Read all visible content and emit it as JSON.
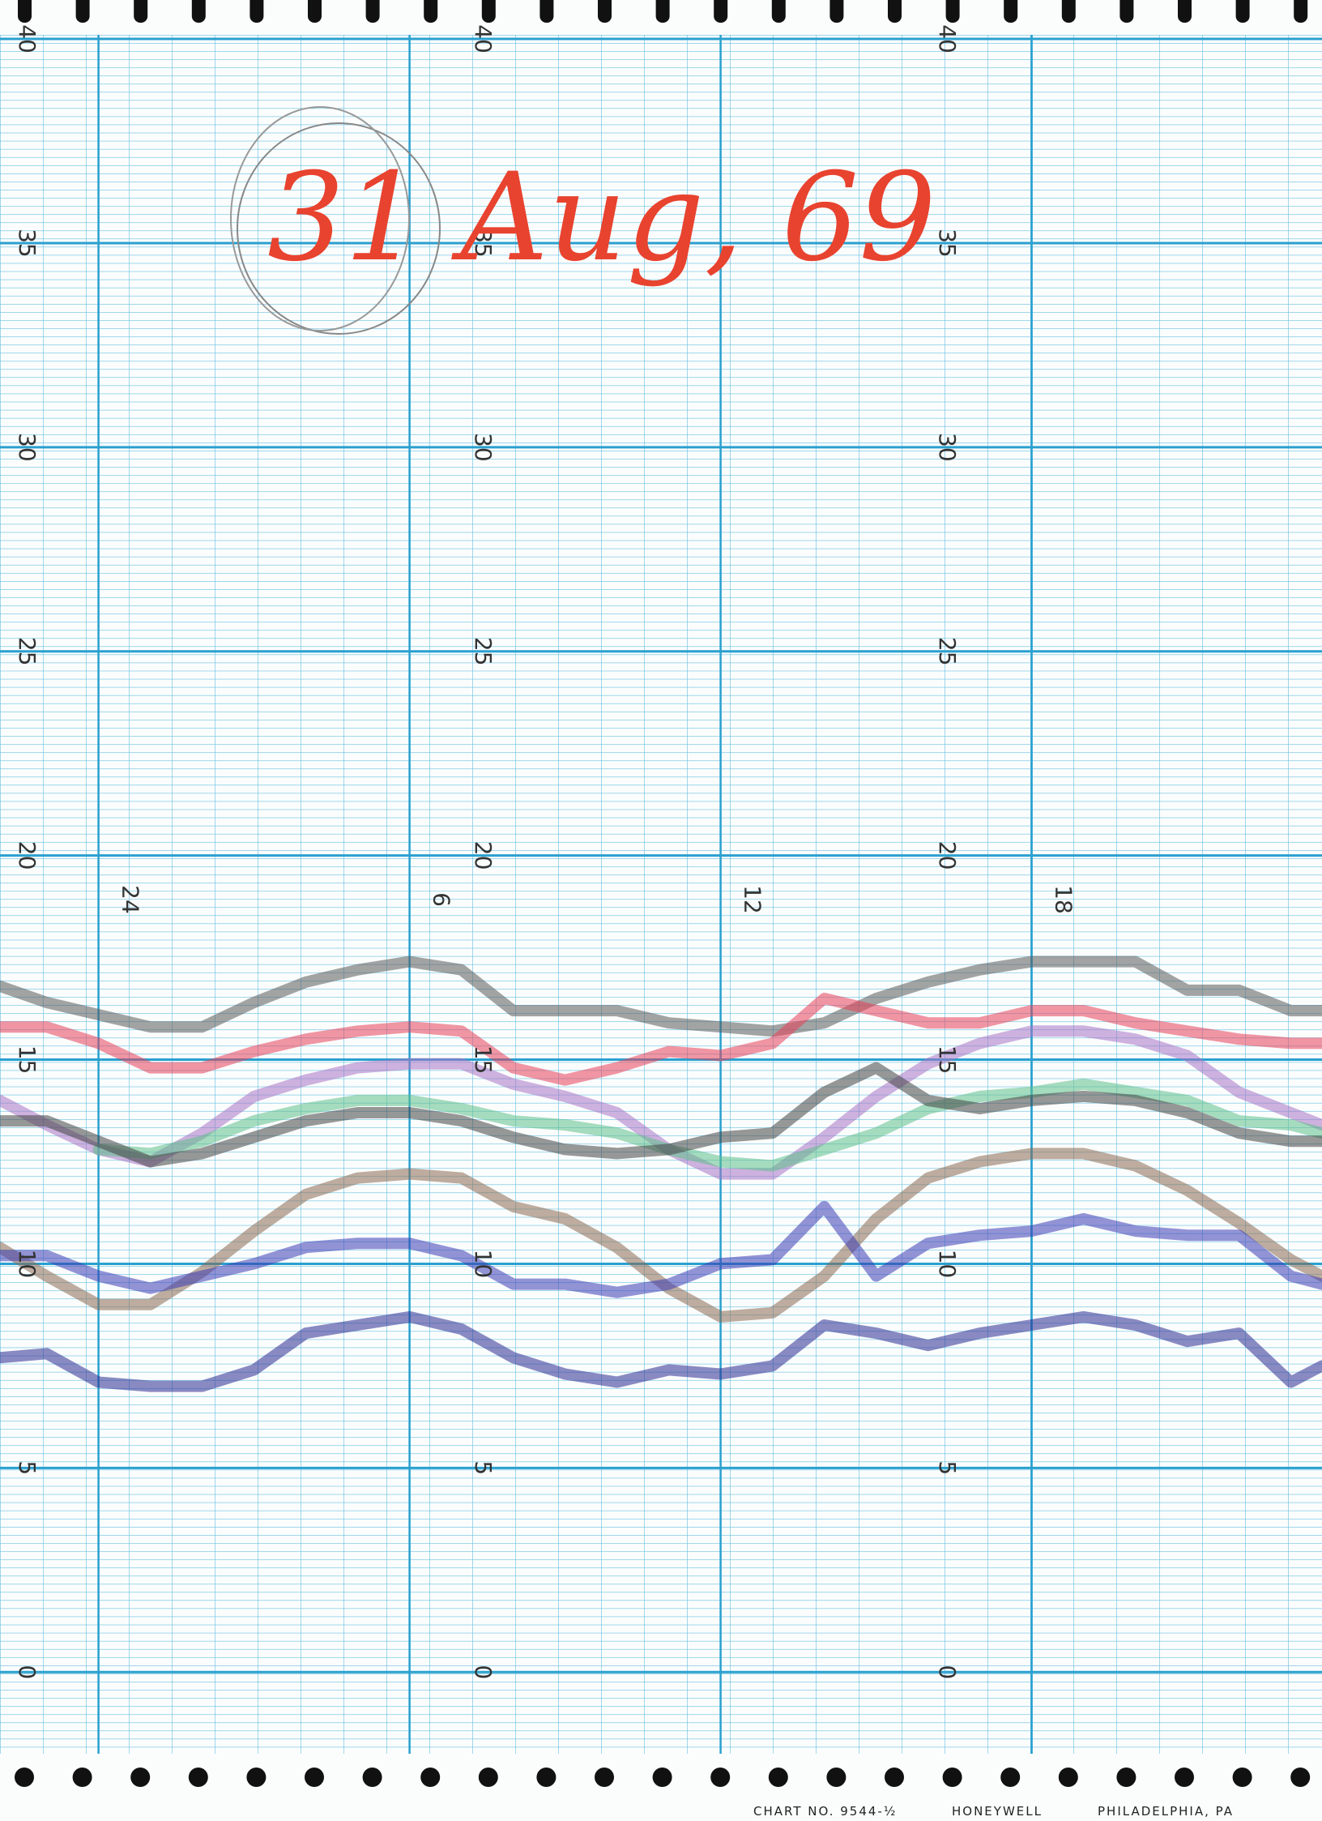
{
  "chart_data": {
    "type": "line",
    "title": "31 Aug, 69",
    "x": [
      -1.9,
      -1,
      0,
      1,
      2,
      3,
      4,
      5,
      6,
      7,
      8,
      9,
      10,
      11,
      12,
      13,
      14,
      15,
      16,
      17,
      18,
      19,
      20,
      21,
      22,
      23,
      23.6
    ],
    "xlim": [
      -1.9,
      23.6
    ],
    "xticks": [
      {
        "value": 0,
        "label": "24"
      },
      6,
      12,
      18
    ],
    "ylim": [
      -2,
      40.1
    ],
    "yticks": [
      0,
      5,
      10,
      15,
      20,
      25,
      30,
      35,
      40
    ],
    "grid": true,
    "series": [
      {
        "color": "#5a5a5a",
        "values": [
          16.8,
          16.4,
          16.1,
          15.8,
          15.8,
          16.4,
          16.9,
          17.2,
          17.4,
          17.2,
          16.2,
          16.2,
          16.2,
          15.9,
          15.8,
          15.7,
          15.9,
          16.5,
          16.9,
          17.2,
          17.4,
          17.4,
          17.4,
          16.7,
          16.7,
          16.2,
          16.2
        ]
      },
      {
        "color": "#e8405a",
        "values": [
          15.8,
          15.8,
          15.4,
          14.8,
          14.8,
          15.2,
          15.5,
          15.7,
          15.8,
          15.7,
          14.8,
          14.5,
          14.8,
          15.2,
          15.1,
          15.4,
          16.5,
          16.2,
          15.9,
          15.9,
          16.2,
          16.2,
          15.9,
          15.7,
          15.5,
          15.4,
          15.4
        ]
      },
      {
        "color": "#a873c4",
        "values": [
          14.0,
          13.4,
          12.8,
          12.5,
          13.2,
          14.1,
          14.5,
          14.8,
          14.9,
          14.9,
          14.4,
          14.1,
          13.7,
          12.8,
          12.2,
          12.2,
          13.1,
          14.1,
          14.9,
          15.4,
          15.7,
          15.7,
          15.5,
          15.1,
          14.2,
          13.7,
          13.4
        ]
      },
      {
        "color": "#5fc08a",
        "values": [
          null,
          null,
          12.8,
          12.7,
          13.0,
          13.5,
          13.8,
          14.0,
          14.0,
          13.8,
          13.5,
          13.4,
          13.2,
          12.8,
          12.5,
          12.4,
          12.8,
          13.2,
          13.8,
          14.1,
          14.2,
          14.4,
          14.2,
          14.0,
          13.5,
          13.4,
          13.2
        ]
      },
      {
        "color": "#444444",
        "values": [
          13.5,
          13.5,
          13.0,
          12.5,
          12.7,
          13.1,
          13.5,
          13.7,
          13.7,
          13.5,
          13.1,
          12.8,
          12.7,
          12.8,
          13.1,
          13.2,
          14.2,
          14.8,
          14.0,
          13.8,
          14.0,
          14.1,
          14.0,
          13.7,
          13.2,
          13.0,
          13.0
        ]
      },
      {
        "color": "#8b6a52",
        "values": [
          10.4,
          9.7,
          9.0,
          9.0,
          9.8,
          10.8,
          11.7,
          12.1,
          12.2,
          12.1,
          11.4,
          11.1,
          10.4,
          9.4,
          8.7,
          8.8,
          9.7,
          11.1,
          12.1,
          12.5,
          12.7,
          12.7,
          12.4,
          11.8,
          11.0,
          10.1,
          9.7
        ]
      },
      {
        "color": "#3c3cb4",
        "values": [
          10.2,
          10.2,
          9.7,
          9.4,
          9.7,
          10.0,
          10.4,
          10.5,
          10.5,
          10.2,
          9.5,
          9.5,
          9.3,
          9.5,
          10.0,
          10.1,
          11.4,
          9.7,
          10.5,
          10.7,
          10.8,
          11.1,
          10.8,
          10.7,
          10.7,
          9.7,
          9.5
        ]
      },
      {
        "color": "#2b2b92",
        "values": [
          7.7,
          7.8,
          7.1,
          7.0,
          7.0,
          7.4,
          8.3,
          8.5,
          8.7,
          8.4,
          7.7,
          7.3,
          7.1,
          7.4,
          7.3,
          7.5,
          8.5,
          8.3,
          8.0,
          8.3,
          8.5,
          8.7,
          8.5,
          8.1,
          8.3,
          7.1,
          7.5
        ]
      }
    ]
  },
  "footer": [
    "CHART NO. 9544-½",
    "HONEYWELL",
    "PHILADELPHIA, PA"
  ]
}
